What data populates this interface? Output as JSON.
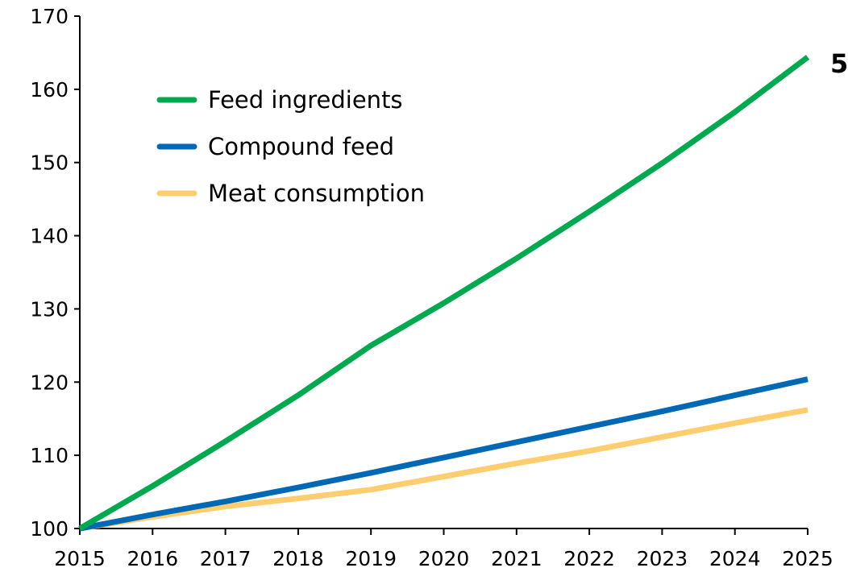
{
  "chart_data": {
    "type": "line",
    "title": "",
    "xlabel": "",
    "ylabel": "",
    "corner_label": "5",
    "x": [
      2015,
      2016,
      2017,
      2018,
      2019,
      2020,
      2021,
      2022,
      2023,
      2024,
      2025
    ],
    "x_tick_labels": [
      "2015",
      "2016",
      "2017",
      "2018",
      "2019",
      "2020",
      "2021",
      "2022",
      "2023",
      "2024",
      "2025"
    ],
    "ylim": [
      100,
      170
    ],
    "y_ticks": [
      100,
      110,
      120,
      130,
      140,
      150,
      160,
      170
    ],
    "y_tick_labels": [
      "100",
      "110",
      "120",
      "130",
      "140",
      "150",
      "160",
      "170"
    ],
    "grid": false,
    "legend_position": "top-left",
    "series": [
      {
        "name": "Feed ingredients",
        "color": "#00a94f",
        "values": [
          100,
          105.8,
          111.9,
          118.2,
          125.0,
          130.8,
          136.9,
          143.3,
          149.9,
          156.9,
          164.4
        ]
      },
      {
        "name": "Compound feed",
        "color": "#0068b4",
        "values": [
          100,
          101.9,
          103.7,
          105.6,
          107.6,
          109.7,
          111.8,
          113.9,
          116.0,
          118.2,
          120.4
        ]
      },
      {
        "name": "Meat consumption",
        "color": "#fdcd70",
        "values": [
          100,
          101.6,
          103.0,
          104.1,
          105.3,
          107.1,
          108.9,
          110.6,
          112.5,
          114.4,
          116.2
        ]
      }
    ]
  }
}
